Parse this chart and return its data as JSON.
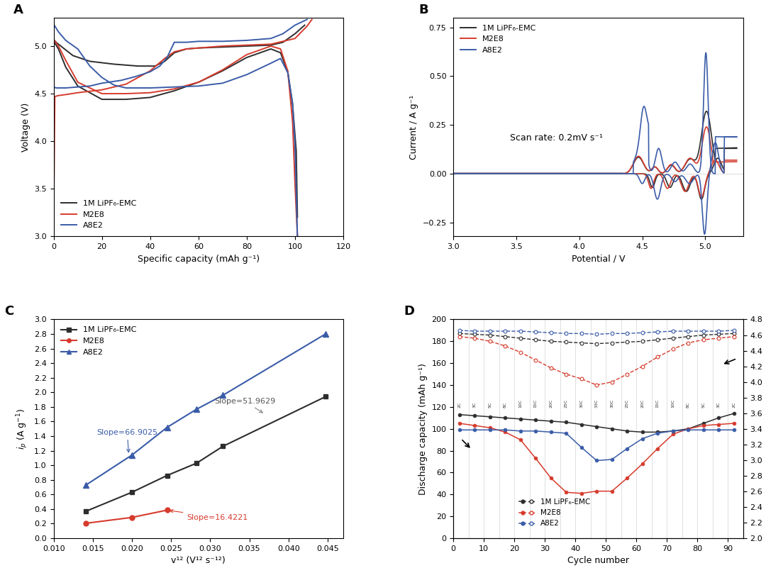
{
  "colors": {
    "black": "#2d2d2d",
    "red": "#d63b2d",
    "blue": "#3a5ca8"
  },
  "legend_labels": [
    "1M LiPF₆-EMC",
    "M2E8",
    "A8E2"
  ],
  "panelA": {
    "xlabel": "Specific capacity (mAh g⁻¹)",
    "ylabel": "Voltage (V)",
    "xlim": [
      0,
      120
    ],
    "ylim": [
      3.0,
      5.3
    ],
    "xticks": [
      0,
      20,
      40,
      60,
      80,
      100,
      120
    ],
    "yticks": [
      3.0,
      3.5,
      4.0,
      4.5,
      5.0
    ],
    "black_charge": [
      [
        0,
        5.07
      ],
      [
        1,
        5.04
      ],
      [
        3,
        5.0
      ],
      [
        8,
        4.9
      ],
      [
        15,
        4.84
      ],
      [
        25,
        4.81
      ],
      [
        35,
        4.79
      ],
      [
        42,
        4.79
      ],
      [
        46,
        4.84
      ],
      [
        50,
        4.93
      ],
      [
        55,
        4.97
      ],
      [
        60,
        4.98
      ],
      [
        70,
        4.99
      ],
      [
        80,
        5.0
      ],
      [
        90,
        5.01
      ],
      [
        95,
        5.04
      ],
      [
        100,
        5.13
      ],
      [
        104,
        5.22
      ]
    ],
    "black_discharge": [
      [
        0,
        5.05
      ],
      [
        2,
        4.97
      ],
      [
        5,
        4.78
      ],
      [
        10,
        4.58
      ],
      [
        20,
        4.44
      ],
      [
        30,
        4.44
      ],
      [
        40,
        4.46
      ],
      [
        50,
        4.53
      ],
      [
        60,
        4.62
      ],
      [
        70,
        4.74
      ],
      [
        80,
        4.88
      ],
      [
        90,
        4.97
      ],
      [
        94,
        4.93
      ],
      [
        97,
        4.73
      ],
      [
        99,
        4.38
      ],
      [
        100.5,
        3.9
      ],
      [
        101,
        3.2
      ]
    ],
    "red_charge": [
      [
        0,
        3.15
      ],
      [
        0.5,
        4.47
      ],
      [
        2,
        4.48
      ],
      [
        5,
        4.49
      ],
      [
        10,
        4.51
      ],
      [
        20,
        4.54
      ],
      [
        30,
        4.6
      ],
      [
        40,
        4.74
      ],
      [
        46,
        4.87
      ],
      [
        50,
        4.94
      ],
      [
        55,
        4.97
      ],
      [
        60,
        4.98
      ],
      [
        70,
        5.0
      ],
      [
        80,
        5.01
      ],
      [
        90,
        5.02
      ],
      [
        95,
        5.05
      ],
      [
        100,
        5.08
      ],
      [
        105,
        5.21
      ],
      [
        107,
        5.28
      ]
    ],
    "red_discharge": [
      [
        0,
        5.07
      ],
      [
        2,
        5.0
      ],
      [
        5,
        4.85
      ],
      [
        10,
        4.62
      ],
      [
        20,
        4.5
      ],
      [
        30,
        4.5
      ],
      [
        40,
        4.51
      ],
      [
        50,
        4.55
      ],
      [
        60,
        4.62
      ],
      [
        70,
        4.75
      ],
      [
        80,
        4.91
      ],
      [
        90,
        5.0
      ],
      [
        94,
        4.97
      ],
      [
        97,
        4.74
      ],
      [
        99,
        4.2
      ],
      [
        100,
        3.55
      ],
      [
        101,
        3.0
      ]
    ],
    "blue_charge": [
      [
        0,
        4.57
      ],
      [
        1,
        4.56
      ],
      [
        5,
        4.56
      ],
      [
        10,
        4.57
      ],
      [
        15,
        4.58
      ],
      [
        20,
        4.61
      ],
      [
        28,
        4.64
      ],
      [
        34,
        4.68
      ],
      [
        40,
        4.73
      ],
      [
        44,
        4.79
      ],
      [
        47,
        4.88
      ],
      [
        50,
        5.04
      ],
      [
        55,
        5.04
      ],
      [
        60,
        5.05
      ],
      [
        70,
        5.05
      ],
      [
        80,
        5.06
      ],
      [
        90,
        5.08
      ],
      [
        95,
        5.13
      ],
      [
        100,
        5.22
      ],
      [
        105,
        5.28
      ]
    ],
    "blue_discharge": [
      [
        0,
        5.23
      ],
      [
        2,
        5.15
      ],
      [
        5,
        5.06
      ],
      [
        10,
        4.97
      ],
      [
        15,
        4.79
      ],
      [
        20,
        4.67
      ],
      [
        25,
        4.59
      ],
      [
        30,
        4.56
      ],
      [
        40,
        4.56
      ],
      [
        50,
        4.57
      ],
      [
        60,
        4.58
      ],
      [
        70,
        4.61
      ],
      [
        80,
        4.7
      ],
      [
        90,
        4.82
      ],
      [
        94,
        4.87
      ],
      [
        97,
        4.72
      ],
      [
        99,
        4.4
      ],
      [
        100,
        3.95
      ],
      [
        101,
        3.0
      ]
    ]
  },
  "panelB": {
    "xlabel": "Potential / V",
    "ylabel": "Current / A g⁻¹",
    "xlim": [
      3.0,
      5.3
    ],
    "ylim": [
      -0.32,
      0.8
    ],
    "xticks": [
      3.0,
      3.5,
      4.0,
      4.5,
      5.0
    ],
    "yticks": [
      -0.25,
      0.0,
      0.25,
      0.5,
      0.75
    ],
    "annotation": "Scan rate: 0.2mV s⁻¹",
    "ann_x": 3.45,
    "ann_y": 0.17
  },
  "panelC": {
    "xlabel": "v¹² (V¹² s⁻¹²)",
    "ylabel": "i$_p$ (A g$^{-1}$)",
    "xlim": [
      0.01,
      0.047
    ],
    "ylim": [
      0.0,
      3.0
    ],
    "xticks": [
      0.01,
      0.015,
      0.02,
      0.025,
      0.03,
      0.035,
      0.04,
      0.045
    ],
    "yticks": [
      0.0,
      0.2,
      0.4,
      0.6,
      0.8,
      1.0,
      1.2,
      1.4,
      1.6,
      1.8,
      2.0,
      2.2,
      2.4,
      2.6,
      2.8,
      3.0
    ],
    "black_x": [
      0.01414,
      0.02,
      0.02449,
      0.02828,
      0.03162,
      0.04472
    ],
    "black_y": [
      0.37,
      0.63,
      0.86,
      1.03,
      1.26,
      1.94
    ],
    "red_x": [
      0.01414,
      0.02,
      0.02449
    ],
    "red_y": [
      0.205,
      0.285,
      0.385
    ],
    "blue_x": [
      0.01414,
      0.02,
      0.02449,
      0.02828,
      0.03162,
      0.04472
    ],
    "blue_y": [
      0.73,
      1.14,
      1.52,
      1.77,
      1.96,
      2.8
    ],
    "slope_black": "51.9629",
    "slope_red": "16.4221",
    "slope_blue": "66.9025"
  },
  "panelD": {
    "xlabel": "Cycle number",
    "ylabel_left": "Discharge capacity (mAh g⁻¹)",
    "ylabel_right": "Medium discharge voltage (V)",
    "xlim": [
      0,
      95
    ],
    "ylim_left": [
      0,
      200
    ],
    "ylim_right": [
      2.0,
      4.8
    ],
    "xticks": [
      0,
      10,
      20,
      30,
      40,
      50,
      60,
      70,
      80,
      90
    ],
    "yticks_left": [
      0,
      20,
      40,
      60,
      80,
      100,
      120,
      140,
      160,
      180,
      200
    ],
    "yticks_right": [
      2.0,
      2.2,
      2.4,
      2.6,
      2.8,
      3.0,
      3.2,
      3.4,
      3.6,
      3.8,
      4.0,
      4.2,
      4.4,
      4.6,
      4.8
    ],
    "rate_labels": [
      "2C",
      "3C",
      "5C",
      "8C",
      "10C",
      "15C",
      "20C",
      "25C",
      "30C",
      "33C",
      "30C",
      "25C",
      "20C",
      "15C",
      "10C",
      "8C",
      "5C",
      "3C",
      "2C"
    ],
    "rate_x": [
      2,
      7,
      12,
      17,
      22,
      27,
      32,
      37,
      42,
      47,
      52,
      57,
      62,
      67,
      72,
      77,
      82,
      87,
      92
    ],
    "black_cap": [
      113,
      112,
      111,
      110,
      109,
      108,
      107,
      106,
      104,
      102,
      100,
      98,
      97,
      97,
      98,
      100,
      105,
      110,
      114
    ],
    "red_cap": [
      105,
      103,
      101,
      97,
      90,
      73,
      55,
      42,
      41,
      43,
      43,
      55,
      68,
      82,
      95,
      100,
      103,
      104,
      105
    ],
    "blue_cap": [
      99,
      99,
      99,
      99,
      98,
      98,
      97,
      96,
      83,
      71,
      72,
      82,
      91,
      96,
      98,
      99,
      99,
      99,
      99
    ],
    "black_mdv": [
      4.62,
      4.61,
      4.6,
      4.58,
      4.56,
      4.54,
      4.52,
      4.51,
      4.5,
      4.49,
      4.5,
      4.51,
      4.52,
      4.54,
      4.56,
      4.58,
      4.6,
      4.61,
      4.62
    ],
    "red_mdv": [
      4.58,
      4.56,
      4.52,
      4.46,
      4.38,
      4.28,
      4.18,
      4.1,
      4.04,
      3.96,
      4.0,
      4.1,
      4.2,
      4.32,
      4.42,
      4.5,
      4.54,
      4.56,
      4.58
    ],
    "blue_mdv": [
      4.66,
      4.65,
      4.65,
      4.65,
      4.65,
      4.64,
      4.63,
      4.62,
      4.62,
      4.61,
      4.62,
      4.62,
      4.63,
      4.64,
      4.65,
      4.65,
      4.65,
      4.65,
      4.66
    ]
  }
}
